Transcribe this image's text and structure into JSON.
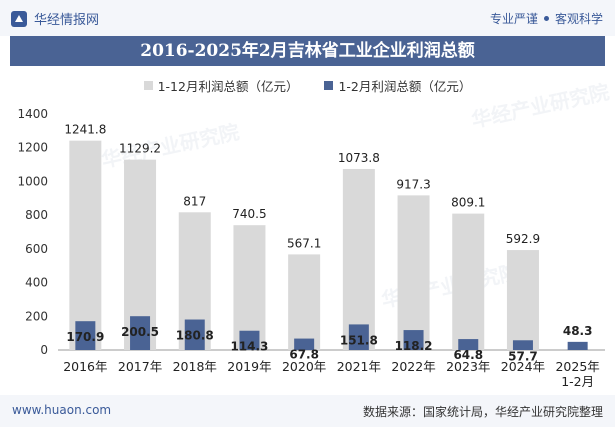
{
  "header": {
    "brand": "华经情报网",
    "slogan_left": "专业严谨",
    "slogan_right": "客观科学"
  },
  "watermark": "华经产业研究院",
  "footer": {
    "website": "www.huaon.com",
    "source": "数据来源：国家统计局，华经产业研究院整理"
  },
  "colors": {
    "series_full": "#d9d9d9",
    "series_jan_feb": "#4a6394",
    "title_bg": "#4a6394"
  },
  "chart_data": {
    "type": "bar",
    "title": "2016-2025年2月吉林省工业企业利润总额",
    "categories": [
      "2016年",
      "2017年",
      "2018年",
      "2019年",
      "2020年",
      "2021年",
      "2022年",
      "2023年",
      "2024年",
      "2025年\n1-2月"
    ],
    "series": [
      {
        "name": "1-12月利润总额（亿元）",
        "values": [
          1241.8,
          1129.2,
          817,
          740.5,
          567.1,
          1073.8,
          917.3,
          809.1,
          592.9,
          null
        ]
      },
      {
        "name": "1-2月利润总额（亿元）",
        "values": [
          170.9,
          200.5,
          180.8,
          114.3,
          67.8,
          151.8,
          118.2,
          64.8,
          57.7,
          48.3
        ]
      }
    ],
    "yticks": [
      0,
      200,
      400,
      600,
      800,
      1000,
      1200,
      1400
    ],
    "ylim": [
      0,
      1400
    ],
    "xlabel": "",
    "ylabel": ""
  }
}
